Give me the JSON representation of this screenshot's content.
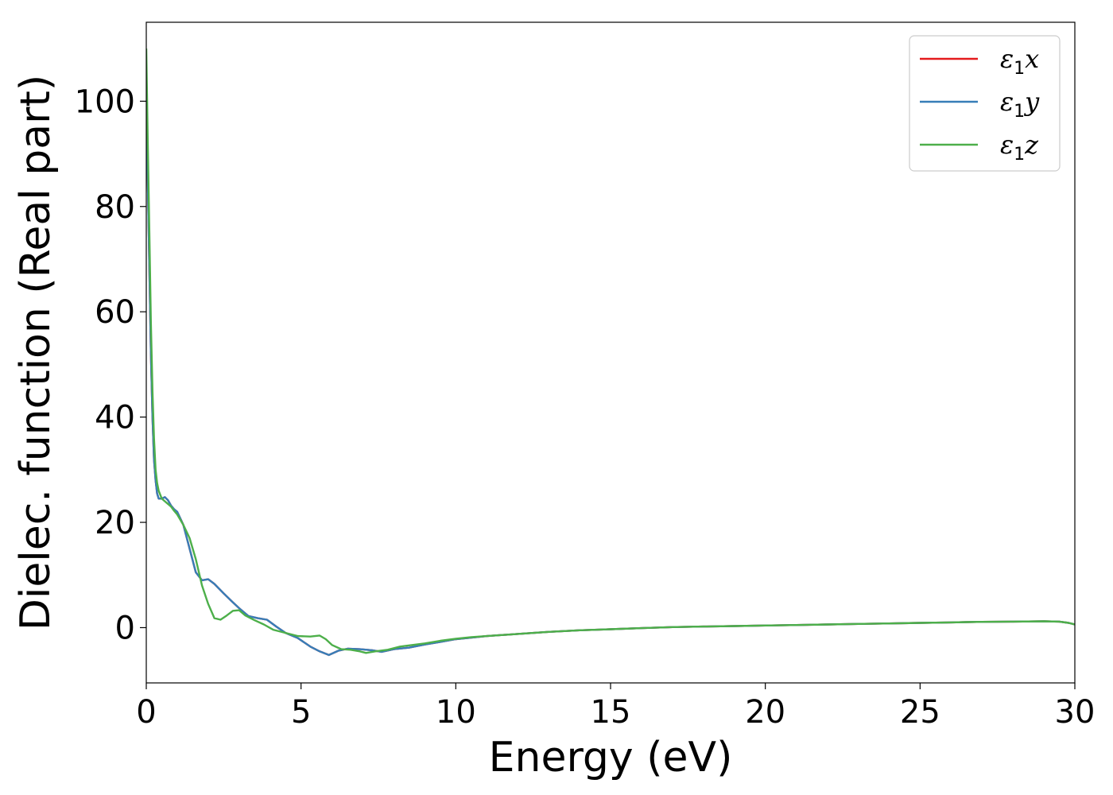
{
  "chart_data": {
    "type": "line",
    "title": "",
    "xlabel": "Energy (eV)",
    "ylabel": "Dielec. function (Real part)",
    "xlim": [
      0,
      30
    ],
    "ylim": [
      -10.5,
      115
    ],
    "x_ticks": [
      0,
      5,
      10,
      15,
      20,
      25,
      30
    ],
    "y_ticks": [
      0,
      20,
      40,
      60,
      80,
      100
    ],
    "grid": false,
    "legend_position": "top-right",
    "series": [
      {
        "name": "ε1x",
        "legend_base": "ε",
        "legend_sub": "1",
        "legend_var": "x",
        "color": "#e41a1c",
        "x": [
          0.0,
          0.05,
          0.1,
          0.15,
          0.2,
          0.25,
          0.3,
          0.35,
          0.4,
          0.5,
          0.6,
          0.7,
          0.8,
          0.9,
          1.0,
          1.2,
          1.4,
          1.6,
          1.8,
          2.0,
          2.2,
          2.5,
          2.8,
          3.0,
          3.3,
          3.6,
          3.9,
          4.2,
          4.5,
          4.9,
          5.3,
          5.6,
          5.9,
          6.2,
          6.5,
          6.9,
          7.3,
          7.6,
          8.0,
          8.5,
          9.0,
          9.5,
          10.0,
          10.5,
          11.0,
          12.0,
          13.0,
          14.0,
          15.0,
          16.0,
          17.0,
          18.0,
          19.0,
          20.0,
          21.0,
          22.0,
          23.0,
          24.0,
          25.0,
          26.0,
          26.5,
          27.0,
          28.0,
          29.0,
          29.5,
          29.8,
          30.0
        ],
        "y": [
          101,
          85,
          68,
          52,
          40,
          32,
          28,
          25.5,
          24.5,
          24.5,
          24.8,
          24.2,
          23.2,
          22.5,
          22,
          19.5,
          15,
          10.5,
          9,
          9.2,
          8.3,
          6.5,
          4.8,
          3.7,
          2.2,
          1.8,
          1.5,
          0.2,
          -1,
          -2,
          -3.6,
          -4.5,
          -5.2,
          -4.4,
          -4,
          -4.1,
          -4.3,
          -4.6,
          -4.1,
          -3.8,
          -3.2,
          -2.7,
          -2.2,
          -1.9,
          -1.6,
          -1.2,
          -0.8,
          -0.5,
          -0.3,
          -0.1,
          0.1,
          0.2,
          0.3,
          0.4,
          0.5,
          0.6,
          0.7,
          0.8,
          0.9,
          1.0,
          1.05,
          1.1,
          1.15,
          1.2,
          1.15,
          0.9,
          0.6
        ]
      },
      {
        "name": "ε1y",
        "legend_base": "ε",
        "legend_sub": "1",
        "legend_var": "y",
        "color": "#377eb8",
        "x": [
          0.0,
          0.05,
          0.1,
          0.15,
          0.2,
          0.25,
          0.3,
          0.35,
          0.4,
          0.5,
          0.6,
          0.7,
          0.8,
          0.9,
          1.0,
          1.2,
          1.4,
          1.6,
          1.8,
          2.0,
          2.2,
          2.5,
          2.8,
          3.0,
          3.3,
          3.6,
          3.9,
          4.2,
          4.5,
          4.9,
          5.3,
          5.6,
          5.9,
          6.2,
          6.5,
          6.9,
          7.3,
          7.6,
          8.0,
          8.5,
          9.0,
          9.5,
          10.0,
          10.5,
          11.0,
          12.0,
          13.0,
          14.0,
          15.0,
          16.0,
          17.0,
          18.0,
          19.0,
          20.0,
          21.0,
          22.0,
          23.0,
          24.0,
          25.0,
          26.0,
          26.5,
          27.0,
          28.0,
          29.0,
          29.5,
          29.8,
          30.0
        ],
        "y": [
          101,
          85,
          68,
          52,
          40,
          32,
          28,
          25.5,
          24.5,
          24.5,
          24.8,
          24.2,
          23.2,
          22.5,
          22,
          19.5,
          15,
          10.5,
          9,
          9.2,
          8.3,
          6.5,
          4.8,
          3.7,
          2.2,
          1.8,
          1.5,
          0.2,
          -1,
          -2,
          -3.6,
          -4.5,
          -5.2,
          -4.4,
          -4,
          -4.1,
          -4.3,
          -4.6,
          -4.1,
          -3.8,
          -3.2,
          -2.7,
          -2.2,
          -1.9,
          -1.6,
          -1.2,
          -0.8,
          -0.5,
          -0.3,
          -0.1,
          0.1,
          0.2,
          0.3,
          0.4,
          0.5,
          0.6,
          0.7,
          0.8,
          0.9,
          1.0,
          1.05,
          1.1,
          1.15,
          1.2,
          1.15,
          0.9,
          0.6
        ]
      },
      {
        "name": "ε1z",
        "legend_base": "ε",
        "legend_sub": "1",
        "legend_var": "z",
        "color": "#4daf4a",
        "x": [
          0.0,
          0.05,
          0.1,
          0.15,
          0.2,
          0.25,
          0.3,
          0.35,
          0.4,
          0.5,
          0.6,
          0.7,
          0.8,
          0.9,
          1.0,
          1.2,
          1.4,
          1.6,
          1.8,
          2.0,
          2.2,
          2.4,
          2.6,
          2.8,
          3.0,
          3.2,
          3.5,
          3.8,
          4.1,
          4.5,
          4.9,
          5.3,
          5.6,
          5.8,
          6.0,
          6.3,
          6.6,
          6.9,
          7.1,
          7.4,
          7.8,
          8.2,
          8.6,
          9.0,
          9.5,
          10.0,
          10.5,
          11.0,
          12.0,
          13.0,
          14.0,
          15.0,
          16.0,
          17.0,
          18.0,
          19.0,
          20.0,
          21.0,
          22.0,
          23.0,
          24.0,
          25.0,
          26.0,
          26.5,
          27.0,
          28.0,
          29.0,
          29.5,
          29.8,
          30.0
        ],
        "y": [
          110,
          92,
          75,
          58,
          45,
          36,
          30,
          27.5,
          26,
          24.5,
          24,
          23.5,
          23,
          22.2,
          21.5,
          19.5,
          17,
          13,
          8,
          4.5,
          1.8,
          1.5,
          2.3,
          3.2,
          3.3,
          2.3,
          1.4,
          0.6,
          -0.4,
          -1,
          -1.6,
          -1.7,
          -1.5,
          -2.2,
          -3.3,
          -4.1,
          -4.2,
          -4.5,
          -4.8,
          -4.5,
          -4.2,
          -3.6,
          -3.3,
          -3,
          -2.5,
          -2.1,
          -1.8,
          -1.6,
          -1.2,
          -0.8,
          -0.5,
          -0.3,
          -0.1,
          0.1,
          0.2,
          0.3,
          0.4,
          0.5,
          0.6,
          0.7,
          0.8,
          0.9,
          1.0,
          1.05,
          1.1,
          1.15,
          1.2,
          1.15,
          0.9,
          0.6
        ]
      }
    ]
  }
}
